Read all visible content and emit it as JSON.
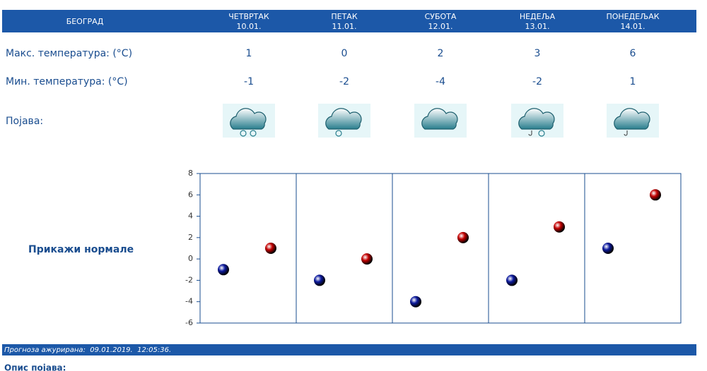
{
  "header": {
    "city": "БЕОГРАД",
    "days": [
      {
        "name": "ЧЕТВРТАК",
        "date": "10.01."
      },
      {
        "name": "ПЕТАК",
        "date": "11.01."
      },
      {
        "name": "СУБОТА",
        "date": "12.01."
      },
      {
        "name": "НЕДЕЉА",
        "date": "13.01."
      },
      {
        "name": "ПОНЕДЕЉАК",
        "date": "14.01."
      }
    ]
  },
  "rows": {
    "max": {
      "label": "Макс. температура: (°C)",
      "values": [
        1,
        0,
        2,
        3,
        6
      ]
    },
    "min": {
      "label": "Мин. температура: (°C)",
      "values": [
        -1,
        -2,
        -4,
        -2,
        1
      ]
    },
    "phenomenon": {
      "label": "Појава:"
    }
  },
  "chart": {
    "ylim": [
      -6,
      8
    ],
    "yticks": [
      -6,
      -4,
      -2,
      0,
      2,
      4,
      6,
      8
    ],
    "min_color": "#0c1a9e",
    "max_color": "#c40000"
  },
  "normals_link": "Прикажи нормале",
  "footer": {
    "updated": "Прогноза ажурирана:  09.01.2019.  12:05:36."
  },
  "bottom_text": "Опис појава:"
}
